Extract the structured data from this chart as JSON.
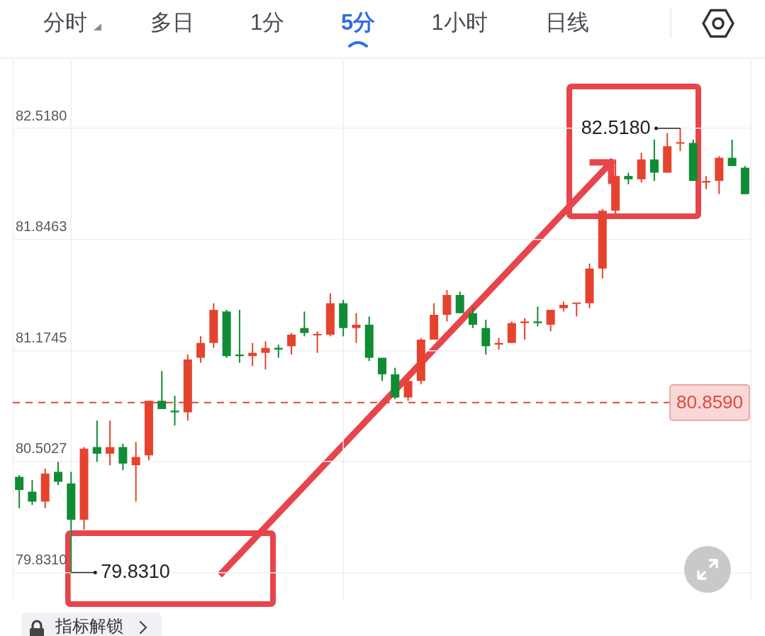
{
  "chart_data": {
    "type": "candlestick",
    "categories": [
      null,
      null,
      null,
      null,
      null,
      null,
      null,
      null,
      null,
      null,
      null,
      null,
      null,
      null,
      null,
      null,
      null,
      null,
      null,
      null,
      null,
      null,
      null,
      null,
      null,
      null,
      null,
      null,
      null,
      null,
      null,
      null,
      null,
      null,
      null,
      null,
      null,
      null,
      null,
      null,
      null,
      null,
      null,
      null,
      null,
      null,
      null,
      null,
      null,
      null,
      null,
      null,
      null,
      null,
      null,
      null,
      null
    ],
    "ohlc": [
      [
        80.41,
        80.42,
        80.22,
        80.33
      ],
      [
        80.32,
        80.39,
        80.24,
        80.26
      ],
      [
        80.26,
        80.46,
        80.22,
        80.43
      ],
      [
        80.44,
        80.5,
        80.36,
        80.38
      ],
      [
        80.37,
        80.44,
        79.831,
        80.15
      ],
      [
        80.15,
        80.59,
        80.09,
        80.58
      ],
      [
        80.59,
        80.75,
        80.5,
        80.55
      ],
      [
        80.55,
        80.75,
        80.48,
        80.59
      ],
      [
        80.59,
        80.61,
        80.45,
        80.49
      ],
      [
        80.48,
        80.62,
        80.26,
        80.53
      ],
      [
        80.54,
        80.87,
        80.51,
        80.87
      ],
      [
        80.87,
        81.05,
        80.82,
        80.82
      ],
      [
        80.81,
        80.9,
        80.72,
        80.8
      ],
      [
        80.8,
        81.15,
        80.75,
        81.12
      ],
      [
        81.13,
        81.26,
        81.1,
        81.22
      ],
      [
        81.22,
        81.46,
        81.19,
        81.42
      ],
      [
        81.41,
        81.42,
        81.13,
        81.14
      ],
      [
        81.15,
        81.42,
        81.1,
        81.14
      ],
      [
        81.14,
        81.22,
        81.08,
        81.16
      ],
      [
        81.16,
        81.23,
        81.06,
        81.19
      ],
      [
        81.19,
        81.21,
        81.13,
        81.18
      ],
      [
        81.2,
        81.28,
        81.15,
        81.27
      ],
      [
        81.31,
        81.41,
        81.26,
        81.28
      ],
      [
        81.27,
        81.29,
        81.16,
        81.27
      ],
      [
        81.27,
        81.52,
        81.26,
        81.46
      ],
      [
        81.46,
        81.48,
        81.26,
        81.31
      ],
      [
        81.31,
        81.4,
        81.22,
        81.33
      ],
      [
        81.33,
        81.38,
        81.11,
        81.13
      ],
      [
        81.13,
        81.13,
        80.99,
        81.03
      ],
      [
        81.03,
        81.07,
        80.88,
        80.89
      ],
      [
        80.89,
        81.01,
        80.87,
        80.99
      ],
      [
        80.99,
        81.25,
        80.97,
        81.24
      ],
      [
        81.24,
        81.46,
        81.24,
        81.39
      ],
      [
        81.39,
        81.54,
        81.35,
        81.51
      ],
      [
        81.51,
        81.53,
        81.4,
        81.4
      ],
      [
        81.4,
        81.44,
        81.31,
        81.33
      ],
      [
        81.31,
        81.36,
        81.15,
        81.2
      ],
      [
        81.21,
        81.25,
        81.18,
        81.22
      ],
      [
        81.22,
        81.35,
        81.22,
        81.34
      ],
      [
        81.34,
        81.37,
        81.24,
        81.35
      ],
      [
        81.35,
        81.44,
        81.32,
        81.34
      ],
      [
        81.33,
        81.42,
        81.29,
        81.42
      ],
      [
        81.43,
        81.47,
        81.41,
        81.45
      ],
      [
        81.46,
        81.46,
        81.38,
        81.46
      ],
      [
        81.46,
        81.7,
        81.43,
        81.67
      ],
      [
        81.67,
        82.03,
        81.61,
        82.02
      ],
      [
        82.02,
        82.33,
        82.0,
        82.23
      ],
      [
        82.23,
        82.25,
        82.18,
        82.21
      ],
      [
        82.21,
        82.37,
        82.19,
        82.33
      ],
      [
        82.33,
        82.45,
        82.2,
        82.25
      ],
      [
        82.25,
        82.49,
        82.25,
        82.41
      ],
      [
        82.43,
        82.518,
        82.38,
        82.43
      ],
      [
        82.43,
        82.45,
        82.2,
        82.2
      ],
      [
        82.19,
        82.23,
        82.15,
        82.2
      ],
      [
        82.2,
        82.35,
        82.12,
        82.34
      ],
      [
        82.34,
        82.45,
        82.29,
        82.29
      ],
      [
        82.28,
        82.29,
        82.12,
        82.12
      ]
    ],
    "colors": [
      "#108c34",
      "#108c34",
      "#e5432e",
      "#108c34",
      "#108c34",
      "#e5432e",
      "#108c34",
      "#e5432e",
      "#108c34",
      "#e5432e",
      "#e5432e",
      "#108c34",
      "#108c34",
      "#e5432e",
      "#e5432e",
      "#e5432e",
      "#108c34",
      "#108c34",
      "#e5432e",
      "#e5432e",
      "#108c34",
      "#e5432e",
      "#108c34",
      "#e5432e",
      "#e5432e",
      "#108c34",
      "#e5432e",
      "#108c34",
      "#108c34",
      "#108c34",
      "#e5432e",
      "#e5432e",
      "#e5432e",
      "#e5432e",
      "#108c34",
      "#108c34",
      "#108c34",
      "#e5432e",
      "#e5432e",
      "#e5432e",
      "#108c34",
      "#e5432e",
      "#e5432e",
      "#e5432e",
      "#e5432e",
      "#e5432e",
      "#e5432e",
      "#108c34",
      "#e5432e",
      "#108c34",
      "#e5432e",
      "#e5432e",
      "#108c34",
      "#e5432e",
      "#e5432e",
      "#108c34",
      "#108c34"
    ],
    "ylim": [
      79.67,
      82.93
    ],
    "yticks": [
      {
        "value": 79.831,
        "label": "79.8310"
      },
      80.5027,
      81.1745,
      81.8463,
      {
        "value": 82.518,
        "label": "82.5180"
      }
    ],
    "grid": "y",
    "ref_lines": [
      {
        "axis": "y",
        "value": 80.859,
        "label": "80.8590",
        "color": "#e0483c",
        "line_style": "dashed"
      }
    ],
    "annotations": [
      "分时",
      "多日",
      "1分",
      "5分",
      "1小时",
      "日线",
      "82.5180",
      "79.8310",
      "指标解锁"
    ]
  }
}
